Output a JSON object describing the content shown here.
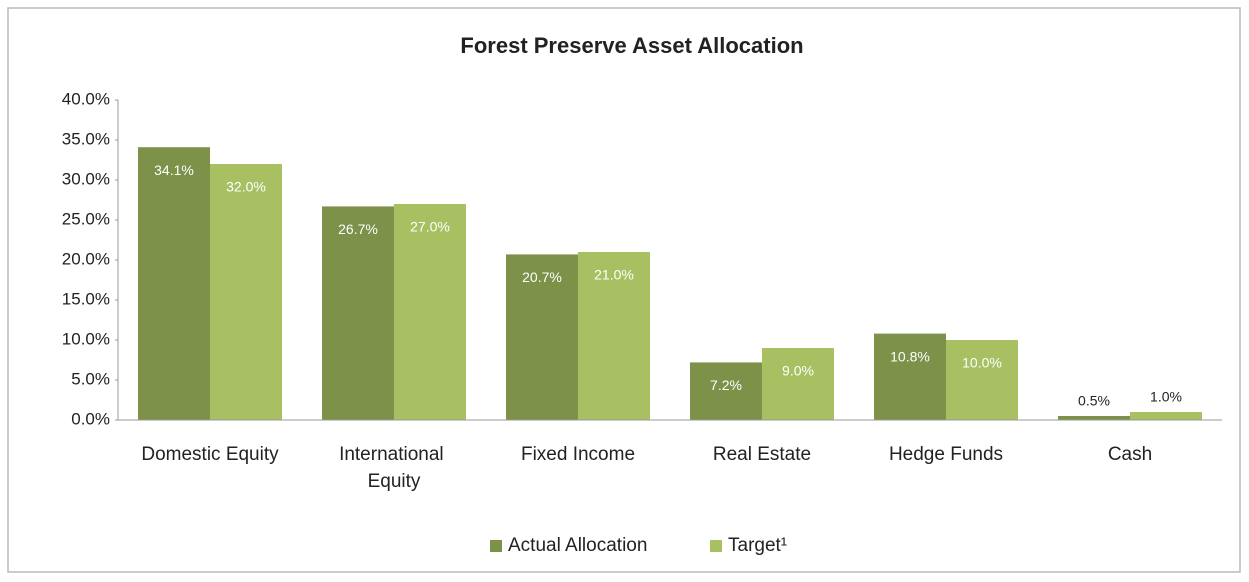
{
  "chart_data": {
    "type": "bar",
    "title": "Forest Preserve Asset Allocation",
    "categories": [
      "Domestic Equity",
      "International Equity",
      "Fixed Income",
      "Real Estate",
      "Hedge Funds",
      "Cash"
    ],
    "series": [
      {
        "name": "Actual Allocation",
        "color": "#7d9149",
        "values": [
          34.1,
          26.7,
          20.7,
          7.2,
          10.8,
          0.5
        ],
        "value_labels": [
          "34.1%",
          "26.7%",
          "20.7%",
          "7.2%",
          "10.8%",
          "0.5%"
        ]
      },
      {
        "name": "Target¹",
        "color": "#a8bf62",
        "values": [
          32.0,
          27.0,
          21.0,
          9.0,
          10.0,
          1.0
        ],
        "value_labels": [
          "32.0%",
          "27.0%",
          "21.0%",
          "9.0%",
          "10.0%",
          "1.0%"
        ]
      }
    ],
    "ylim": [
      0,
      40
    ],
    "yticks": [
      {
        "value": 0,
        "label": "0.0%"
      },
      {
        "value": 5,
        "label": "5.0%"
      },
      {
        "value": 10,
        "label": "10.0%"
      },
      {
        "value": 15,
        "label": "15.0%"
      },
      {
        "value": 20,
        "label": "20.0%"
      },
      {
        "value": 25,
        "label": "25.0%"
      },
      {
        "value": 30,
        "label": "30.0%"
      },
      {
        "value": 35,
        "label": "35.0%"
      },
      {
        "value": 40,
        "label": "40.0%"
      }
    ],
    "legend": "bottom"
  }
}
